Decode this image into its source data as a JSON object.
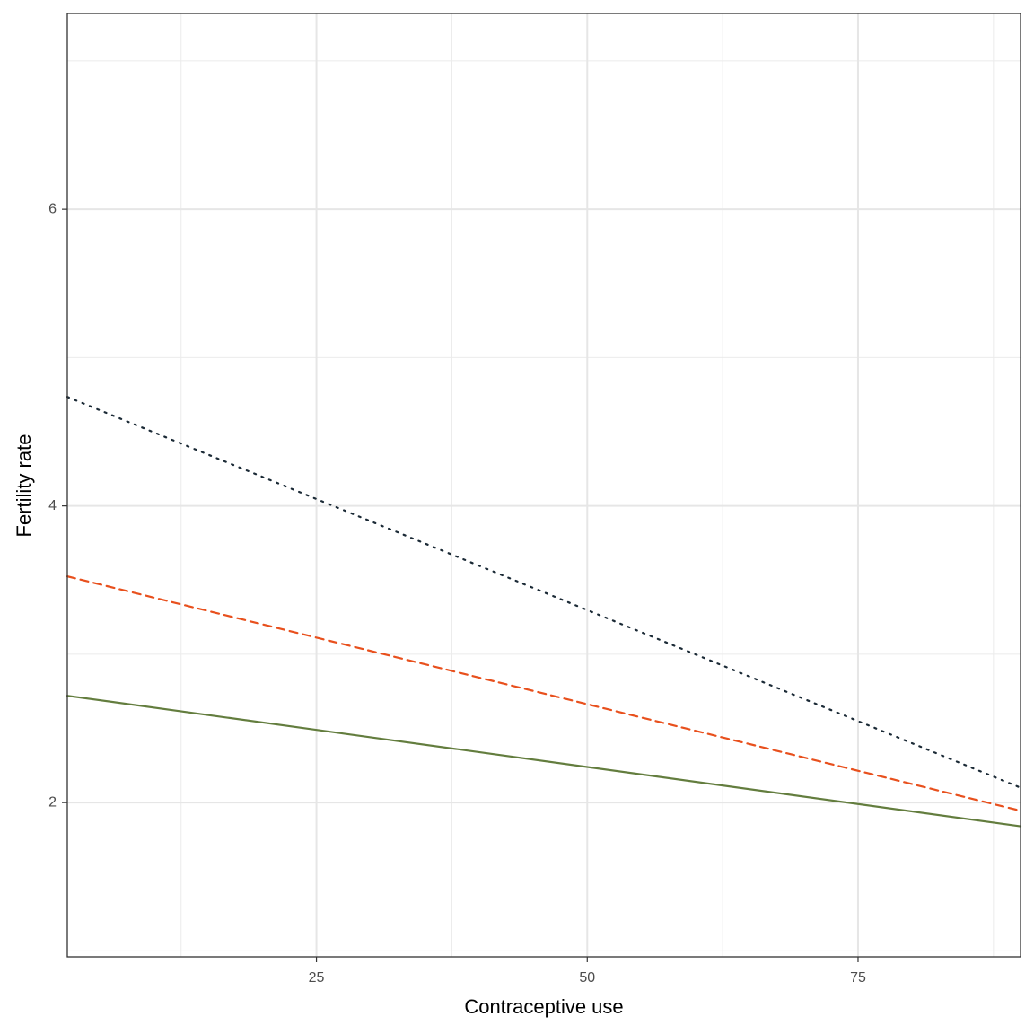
{
  "chart_data": {
    "type": "line",
    "x_label": "Contraceptive use",
    "y_label": "Fertility rate",
    "x": [
      2,
      90
    ],
    "series": [
      {
        "color": "#1b2a36",
        "dash": "dotted",
        "values": [
          4.735,
          2.1
        ]
      },
      {
        "color": "#e8501d",
        "dash": "dashed",
        "values": [
          3.525,
          1.945
        ]
      },
      {
        "color": "#637d3e",
        "dash": "solid",
        "values": [
          2.72,
          1.84
        ]
      }
    ],
    "xlim": [
      2,
      90
    ],
    "xticks": [
      25,
      50,
      75
    ],
    "xminor": [
      12.5,
      37.5,
      62.5,
      87.5
    ],
    "ylim": [
      0.96,
      7.32
    ],
    "yticks": [
      2,
      4,
      6
    ],
    "yminor": [
      1,
      3,
      5,
      7
    ],
    "grid": true
  }
}
